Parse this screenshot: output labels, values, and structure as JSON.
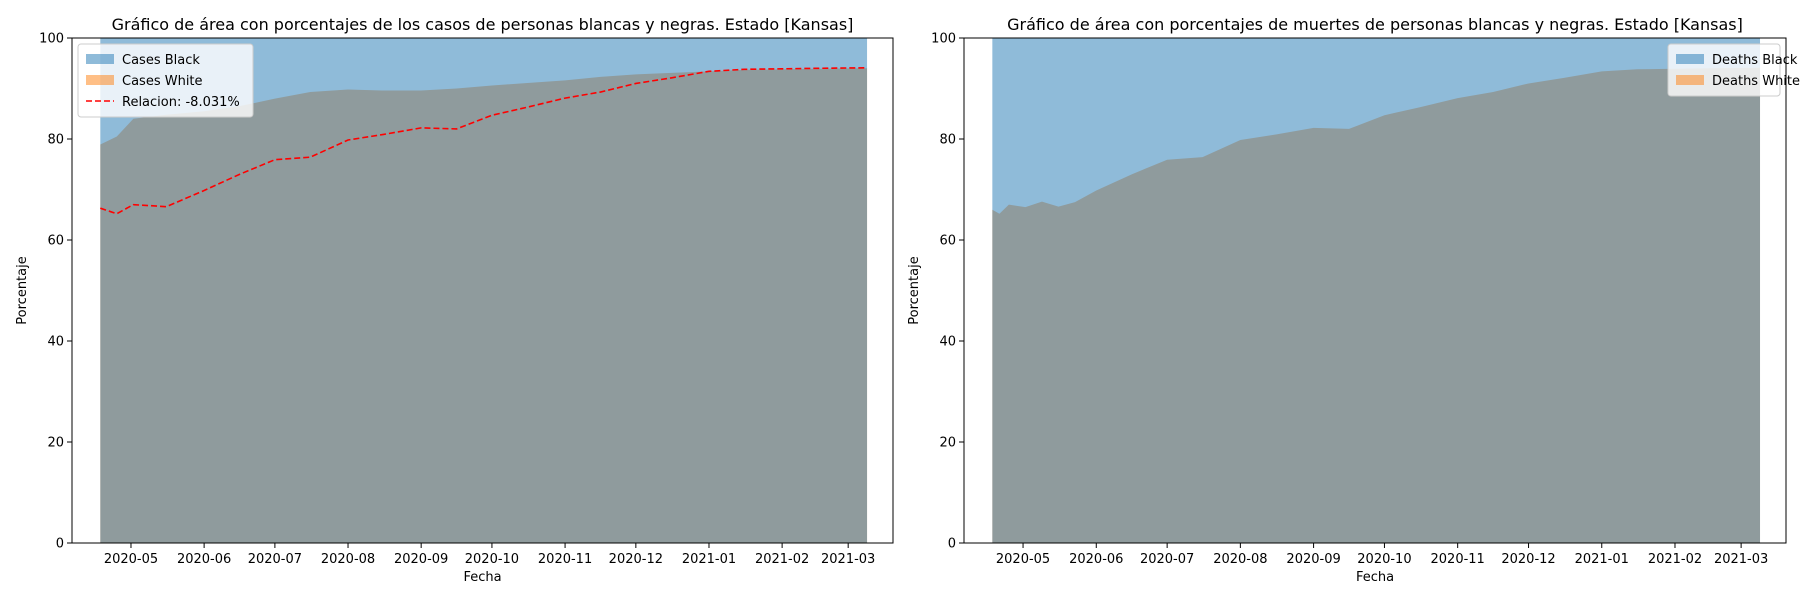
{
  "figure": {
    "background": "#ffffff"
  },
  "colors": {
    "black": "#1f77b4",
    "white": "#ff7f0e",
    "ratio": "#ff0000",
    "area_alpha": 0.5
  },
  "chart_data": [
    {
      "type": "area",
      "title": "Gráfico de área con porcentajes de los casos de personas blancas y negras. Estado [Kansas]",
      "xlabel": "Fecha",
      "ylabel": "Porcentaje",
      "ylim": [
        0,
        100
      ],
      "xlim": [
        "2020-04-06",
        "2021-03-20"
      ],
      "yticks": [
        0,
        20,
        40,
        60,
        80,
        100
      ],
      "xticks": [
        "2020-05",
        "2020-06",
        "2020-07",
        "2020-08",
        "2020-09",
        "2020-10",
        "2020-11",
        "2020-12",
        "2021-01",
        "2021-02",
        "2021-03"
      ],
      "grid": false,
      "legend_position": "upper-left",
      "x": [
        "2020-04-18",
        "2020-04-25",
        "2020-05-02",
        "2020-05-16",
        "2020-06-01",
        "2020-06-16",
        "2020-07-01",
        "2020-07-16",
        "2020-08-01",
        "2020-08-16",
        "2020-09-01",
        "2020-09-16",
        "2020-10-01",
        "2020-10-16",
        "2020-11-01",
        "2020-11-16",
        "2020-12-01",
        "2020-12-16",
        "2021-01-01",
        "2021-01-16",
        "2021-02-01",
        "2021-02-16",
        "2021-03-09"
      ],
      "series": [
        {
          "name": "Cases Black",
          "kind": "area",
          "values": [
            100,
            100,
            100,
            100,
            100,
            100,
            100,
            100,
            100,
            100,
            100,
            100,
            100,
            100,
            100,
            100,
            100,
            100,
            100,
            100,
            100,
            100,
            100
          ]
        },
        {
          "name": "Cases White",
          "kind": "area",
          "values": [
            78.9,
            80.5,
            84.0,
            84.8,
            85.5,
            86.5,
            88.0,
            89.3,
            89.8,
            89.6,
            89.6,
            90.0,
            90.6,
            91.1,
            91.6,
            92.3,
            92.8,
            93.1,
            93.4,
            93.7,
            93.8,
            93.9,
            94.0
          ]
        },
        {
          "name": "Relacion: -8.031%",
          "kind": "line",
          "values": [
            66.3,
            65.2,
            67.0,
            66.6,
            69.8,
            73.0,
            75.9,
            76.4,
            79.8,
            80.9,
            82.2,
            82.0,
            84.7,
            86.3,
            88.1,
            89.3,
            91.0,
            92.1,
            93.4,
            93.8,
            93.9,
            94.0,
            94.1
          ]
        }
      ]
    },
    {
      "type": "area",
      "title": "Gráfico de área con porcentajes de muertes de personas blancas y negras. Estado [Kansas]",
      "xlabel": "Fecha",
      "ylabel": "Porcentaje",
      "ylim": [
        0,
        100
      ],
      "xlim": [
        "2020-04-06",
        "2021-03-20"
      ],
      "yticks": [
        0,
        20,
        40,
        60,
        80,
        100
      ],
      "xticks": [
        "2020-05",
        "2020-06",
        "2020-07",
        "2020-08",
        "2020-09",
        "2020-10",
        "2020-11",
        "2020-12",
        "2021-01",
        "2021-02",
        "2021-03"
      ],
      "grid": false,
      "legend_position": "upper-right",
      "x": [
        "2020-04-18",
        "2020-04-21",
        "2020-04-25",
        "2020-05-02",
        "2020-05-09",
        "2020-05-16",
        "2020-05-23",
        "2020-06-01",
        "2020-06-16",
        "2020-07-01",
        "2020-07-16",
        "2020-08-01",
        "2020-08-16",
        "2020-09-01",
        "2020-09-16",
        "2020-10-01",
        "2020-10-16",
        "2020-11-01",
        "2020-11-16",
        "2020-12-01",
        "2020-12-16",
        "2021-01-01",
        "2021-01-16",
        "2021-02-01",
        "2021-02-16",
        "2021-03-09"
      ],
      "series": [
        {
          "name": "Deaths Black",
          "kind": "area",
          "values": [
            100,
            100,
            100,
            100,
            100,
            100,
            100,
            100,
            100,
            100,
            100,
            100,
            100,
            100,
            100,
            100,
            100,
            100,
            100,
            100,
            100,
            100,
            100,
            100,
            100,
            100
          ]
        },
        {
          "name": "Deaths White",
          "kind": "area",
          "values": [
            66.0,
            65.2,
            67.0,
            66.5,
            67.6,
            66.6,
            67.5,
            69.8,
            73.0,
            75.9,
            76.4,
            79.8,
            80.9,
            82.2,
            82.0,
            84.7,
            86.3,
            88.1,
            89.3,
            91.0,
            92.1,
            93.4,
            93.8,
            93.9,
            94.0,
            94.1
          ]
        }
      ]
    }
  ]
}
